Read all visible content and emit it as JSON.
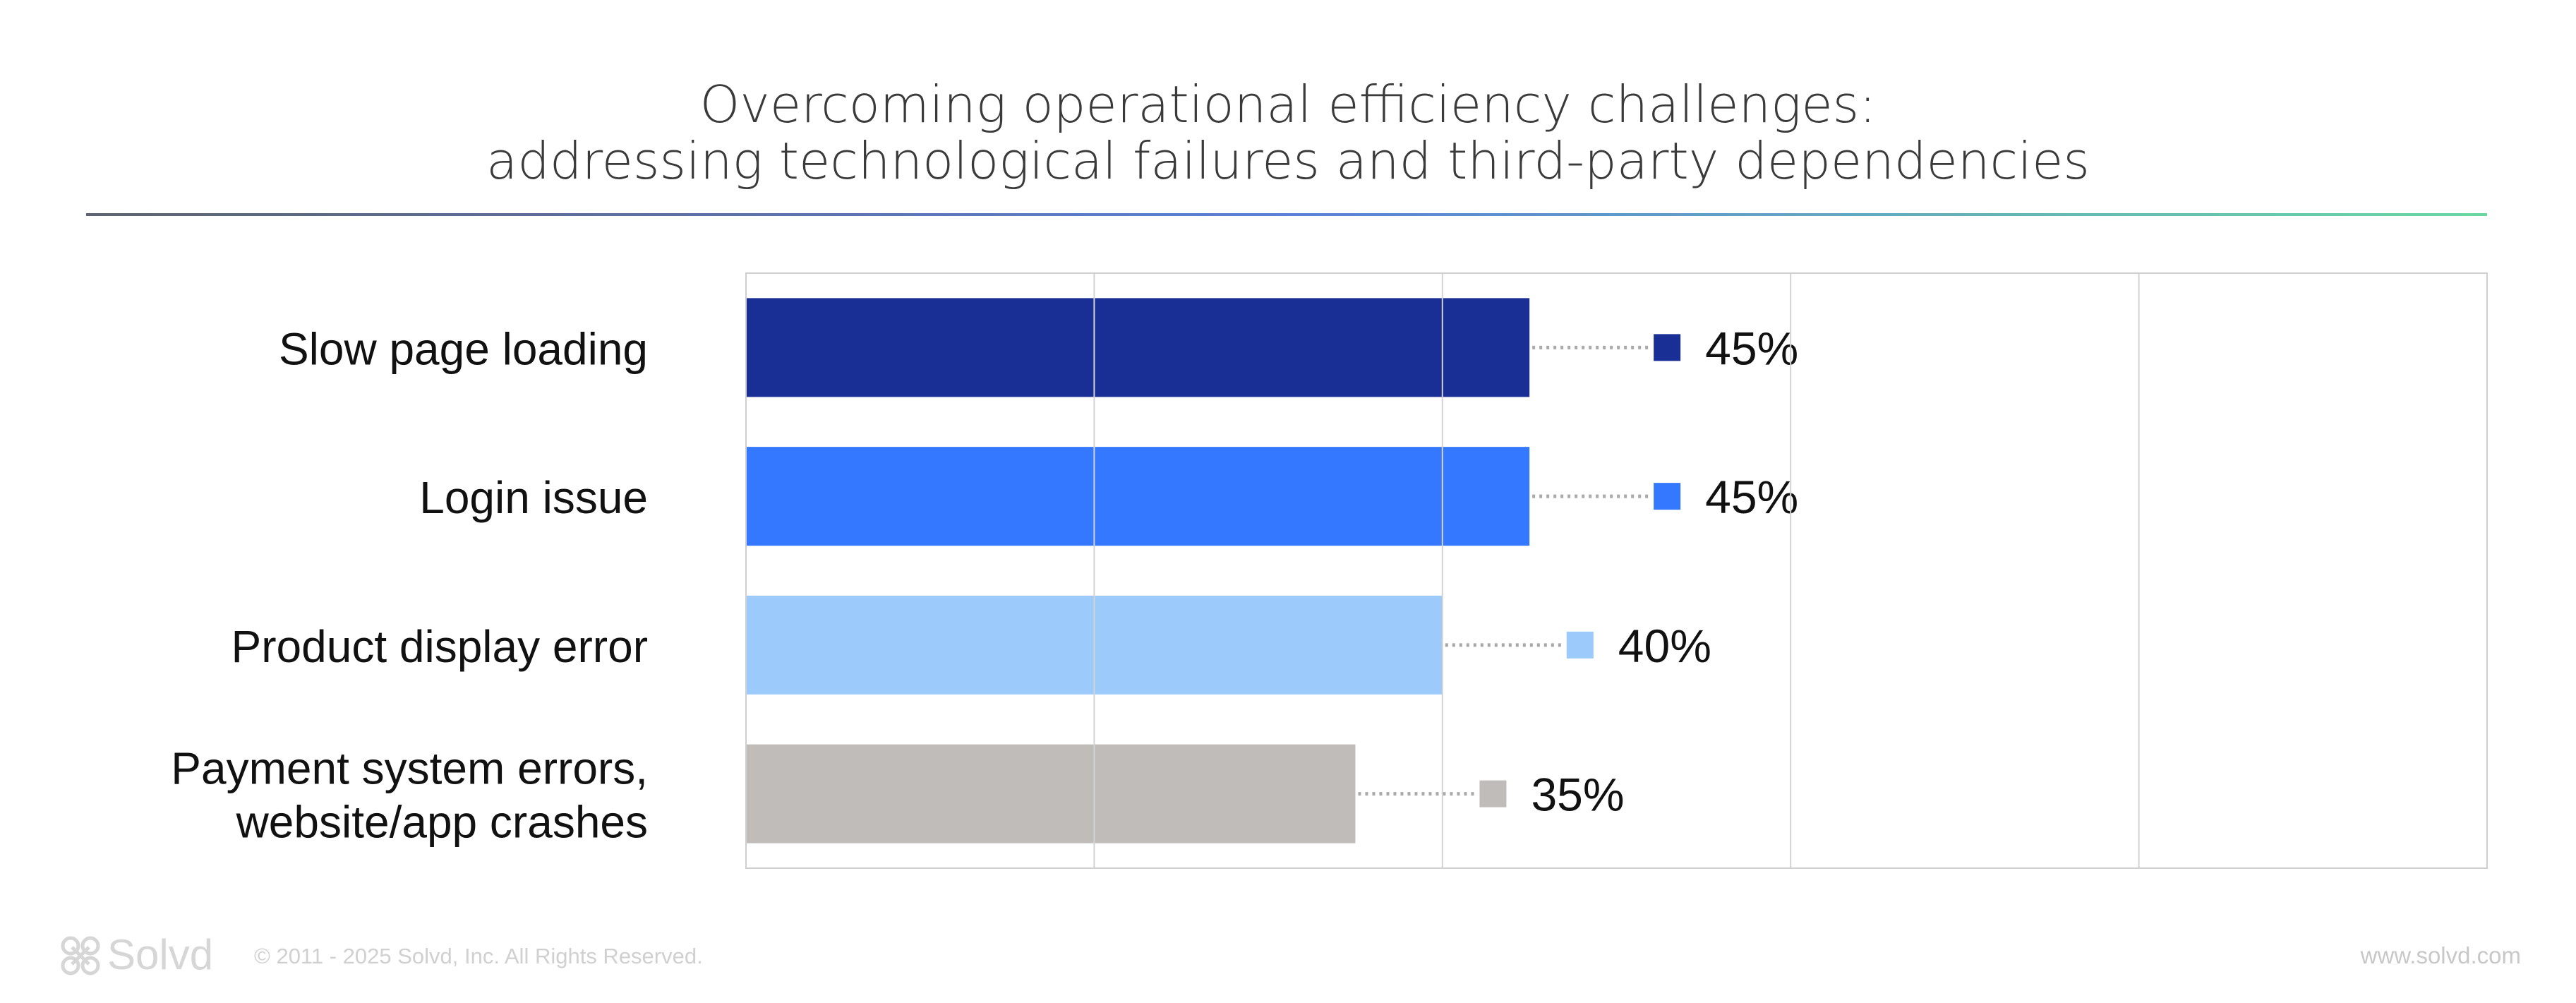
{
  "chart_data": {
    "type": "bar",
    "orientation": "horizontal",
    "title": "Overcoming operational efficiency challenges:",
    "subtitle": "addressing technological failures and third-party dependencies",
    "categories": [
      [
        "Slow page loading"
      ],
      [
        "Login issue"
      ],
      [
        "Product display error"
      ],
      [
        "Payment system errors,",
        "website/app crashes"
      ]
    ],
    "values": [
      45,
      45,
      40,
      35
    ],
    "value_labels": [
      "45%",
      "45%",
      "40%",
      "35%"
    ],
    "colors": [
      "#1a2f95",
      "#3478ff",
      "#9ccbfb",
      "#bfbcba"
    ],
    "xlim": [
      0,
      100
    ],
    "grid": true,
    "xlabel": "",
    "ylabel": ""
  },
  "footer": {
    "brand": "Solvd",
    "copyright": "© 2011 - 2025 Solvd, Inc. All Rights Reserved.",
    "url": "www.solvd.com"
  },
  "icons": {
    "logo": "solvd-logo-icon"
  }
}
